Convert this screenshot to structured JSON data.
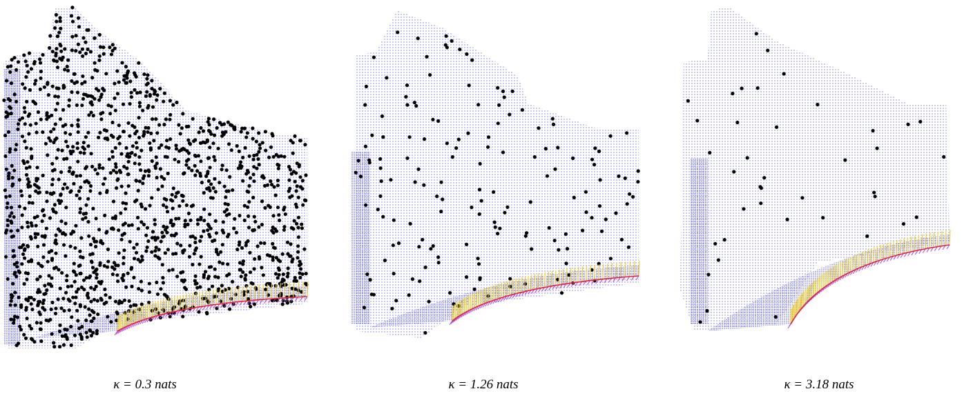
{
  "panels": [
    {
      "caption": "κ = 0.3 nats"
    },
    {
      "caption": "κ = 1.26 nats"
    },
    {
      "caption": "κ = 3.18 nats"
    }
  ]
}
